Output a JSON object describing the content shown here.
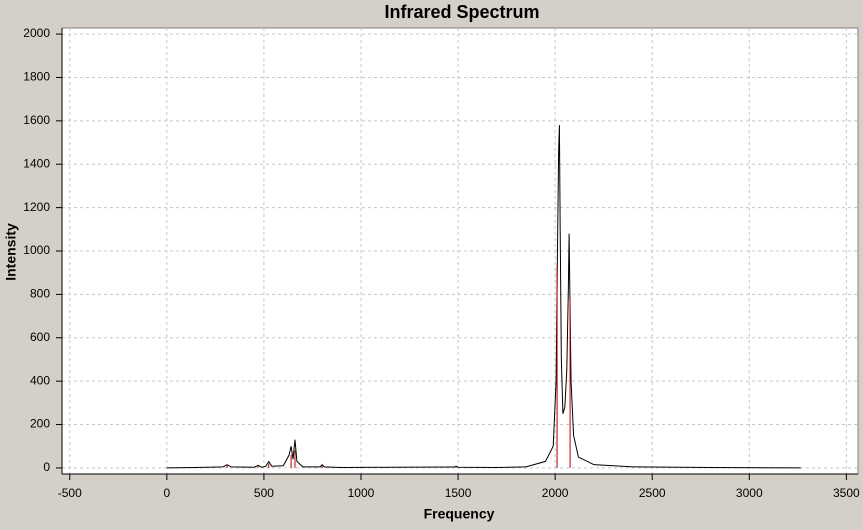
{
  "chart_data": {
    "type": "spectrum",
    "title": "Infrared Spectrum",
    "x_label": "Frequency",
    "y_label": "Intensity",
    "xlim": [
      -540,
      3560
    ],
    "ylim": [
      -28,
      2028
    ],
    "xticks": [
      -500,
      0,
      500,
      1000,
      1500,
      2000,
      2500,
      3000,
      3500
    ],
    "yticks": [
      0,
      200,
      400,
      600,
      800,
      1000,
      1200,
      1400,
      1600,
      1800,
      2000
    ],
    "grid": true,
    "series": [
      {
        "kind": "line",
        "color": "#000000",
        "x": [
          0,
          150,
          290,
          310,
          330,
          450,
          470,
          490,
          510,
          525,
          540,
          600,
          630,
          640,
          650,
          660,
          670,
          700,
          790,
          800,
          810,
          900,
          1150,
          1480,
          1490,
          1500,
          1700,
          1850,
          1950,
          1990,
          2005,
          2012,
          2018,
          2022,
          2026,
          2032,
          2040,
          2050,
          2060,
          2068,
          2072,
          2076,
          2082,
          2095,
          2120,
          2200,
          2400,
          2800,
          3265
        ],
        "values": [
          0,
          2,
          5,
          15,
          5,
          3,
          12,
          3,
          8,
          30,
          8,
          10,
          60,
          100,
          40,
          130,
          30,
          5,
          5,
          15,
          5,
          2,
          3,
          4,
          8,
          3,
          2,
          5,
          30,
          100,
          400,
          1000,
          1460,
          1580,
          1100,
          500,
          250,
          280,
          450,
          820,
          1080,
          800,
          400,
          150,
          50,
          15,
          5,
          2,
          0
        ]
      },
      {
        "kind": "stick",
        "color": "#b00000",
        "x": [
          310,
          470,
          525,
          640,
          660,
          800,
          1490,
          2010,
          2077
        ],
        "values": [
          15,
          10,
          20,
          60,
          80,
          10,
          5,
          935,
          783
        ]
      }
    ]
  }
}
